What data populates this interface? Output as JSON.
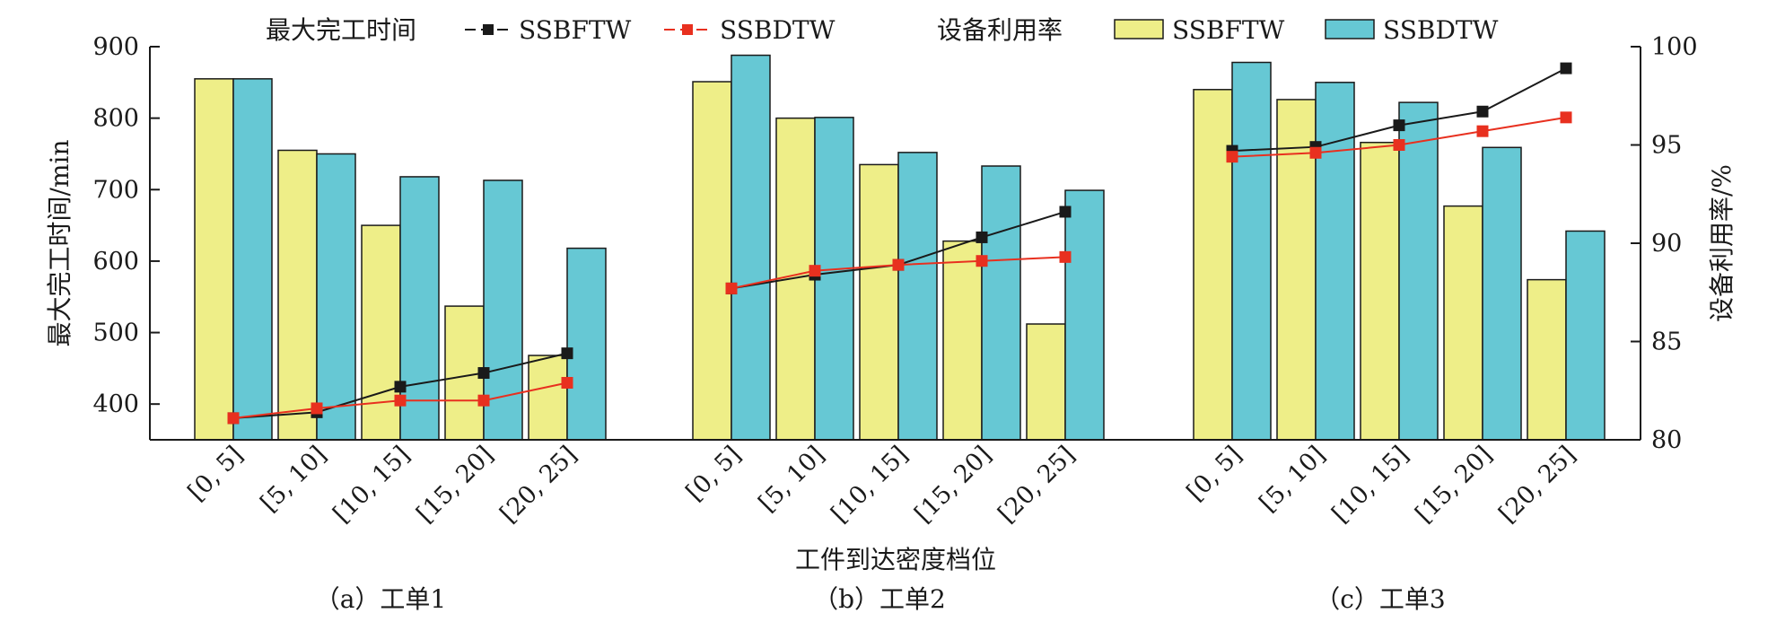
{
  "legend": {
    "makespan_title": "最大完工时间",
    "utilization_title": "设备利用率",
    "series_ssbftw": "SSBFTW",
    "series_ssbdtw": "SSBDTW"
  },
  "axes": {
    "left_label": "最大完工时间/min",
    "right_label": "设备利用率/%",
    "x_label": "工件到达密度档位",
    "left_ticks": [
      "400",
      "500",
      "600",
      "700",
      "800",
      "900"
    ],
    "right_ticks": [
      "80",
      "85",
      "90",
      "95",
      "100"
    ]
  },
  "panels": [
    {
      "label": "（a）工单1"
    },
    {
      "label": "（b）工单2"
    },
    {
      "label": "（c）工单3"
    }
  ],
  "colors": {
    "bar_ssbftw": "#eeee88",
    "bar_ssbdtw": "#66c8d4",
    "line_ssbftw": "#1a1a1a",
    "line_ssbdtw": "#e8301f"
  },
  "chart_data": {
    "type": "bar",
    "categories": [
      "[0, 5]",
      "[5, 10]",
      "[10, 15]",
      "[15, 20]",
      "[20, 25]"
    ],
    "y_left": {
      "label": "最大完工时间/min",
      "ylim": [
        350,
        900
      ]
    },
    "y_right": {
      "label": "设备利用率/%",
      "ylim": [
        80,
        100
      ]
    },
    "xlabel": "工件到达密度档位",
    "groups": [
      {
        "label": "（a）工单1",
        "bars": [
          {
            "name": "SSBFTW",
            "values": [
              855,
              755,
              650,
              537,
              468
            ]
          },
          {
            "name": "SSBDTW",
            "values": [
              855,
              750,
              718,
              713,
              618
            ]
          }
        ],
        "lines": [
          {
            "name": "SSBFTW",
            "values": [
              81.1,
              81.4,
              82.7,
              83.4,
              84.4
            ]
          },
          {
            "name": "SSBDTW",
            "values": [
              81.1,
              81.6,
              82.0,
              82.0,
              82.9
            ]
          }
        ]
      },
      {
        "label": "（b）工单2",
        "bars": [
          {
            "name": "SSBFTW",
            "values": [
              851,
              800,
              735,
              628,
              512
            ]
          },
          {
            "name": "SSBDTW",
            "values": [
              888,
              801,
              752,
              733,
              699
            ]
          }
        ],
        "lines": [
          {
            "name": "SSBFTW",
            "values": [
              87.7,
              88.4,
              88.9,
              90.3,
              91.6
            ]
          },
          {
            "name": "SSBDTW",
            "values": [
              87.7,
              88.6,
              88.9,
              89.1,
              89.3
            ]
          }
        ]
      },
      {
        "label": "（c）工单3",
        "bars": [
          {
            "name": "SSBFTW",
            "values": [
              840,
              826,
              766,
              677,
              574
            ]
          },
          {
            "name": "SSBDTW",
            "values": [
              878,
              850,
              822,
              759,
              642
            ]
          }
        ],
        "lines": [
          {
            "name": "SSBFTW",
            "values": [
              94.7,
              94.9,
              96.0,
              96.7,
              98.9
            ]
          },
          {
            "name": "SSBDTW",
            "values": [
              94.4,
              94.6,
              95.0,
              95.7,
              96.4
            ]
          }
        ]
      }
    ],
    "legend_position": "top",
    "grid": false
  }
}
